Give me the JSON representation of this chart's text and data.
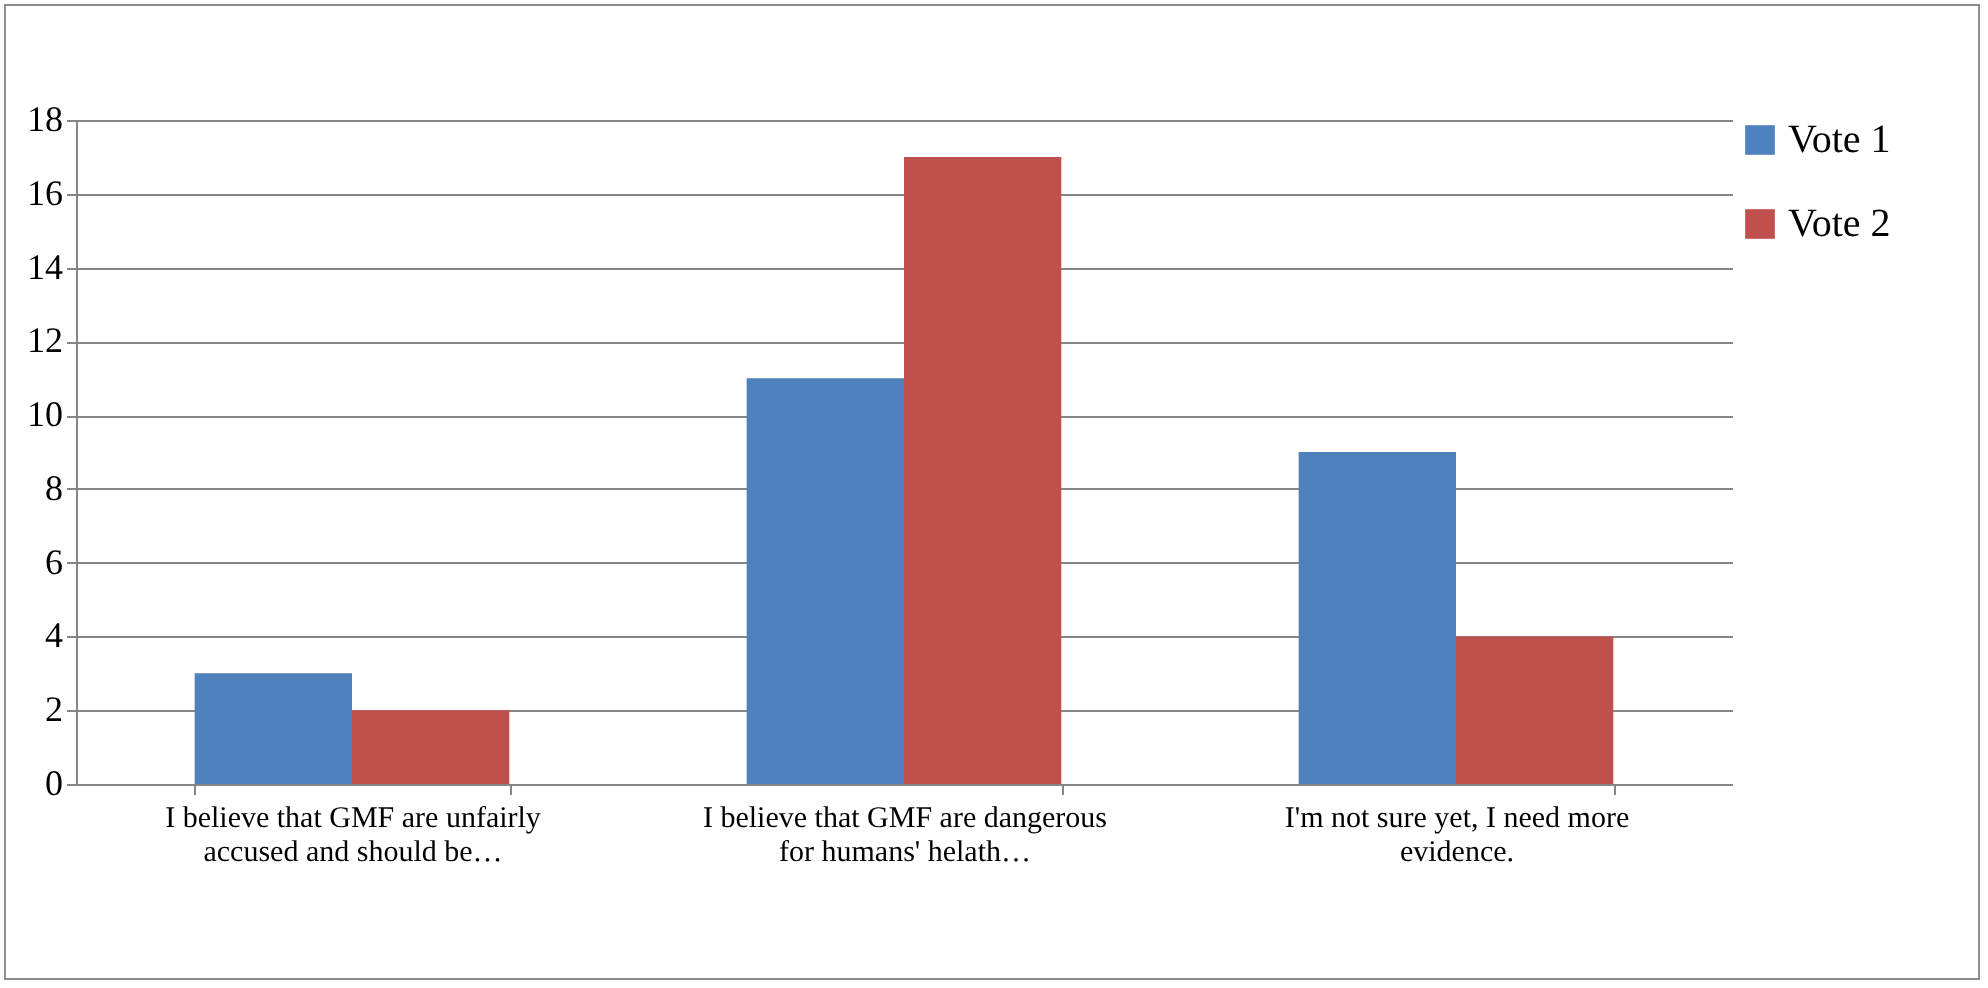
{
  "chart_data": {
    "type": "bar",
    "categories": [
      "I believe that GMF are unfairly accused and should be…",
      "I believe that GMF are dangerous for humans' helath…",
      "I'm not sure yet, I need more evidence."
    ],
    "series": [
      {
        "name": "Vote 1",
        "color": "#4f81bd",
        "values": [
          3,
          11,
          9
        ]
      },
      {
        "name": "Vote 2",
        "color": "#c0504d",
        "values": [
          2,
          17,
          4
        ]
      }
    ],
    "ylim": [
      0,
      18
    ],
    "yticks": [
      0,
      2,
      4,
      6,
      8,
      10,
      12,
      14,
      16,
      18
    ],
    "grid": "y",
    "legend": "right"
  }
}
